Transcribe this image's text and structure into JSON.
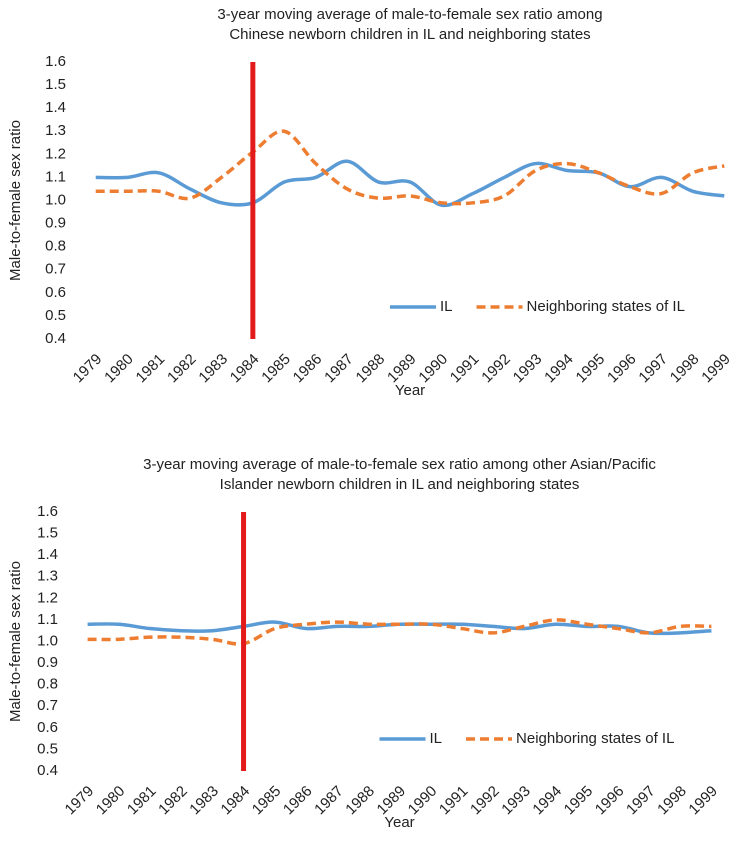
{
  "chart_data": [
    {
      "type": "line",
      "title": "3-year moving average of male-to-female sex ratio among Chinese newborn children in IL and neighboring states",
      "x_label": "Year",
      "y_label": "Male-to-female sex ratio",
      "categories": [
        "1979",
        "1980",
        "1981",
        "1982",
        "1983",
        "1984",
        "1985",
        "1986",
        "1987",
        "1988",
        "1989",
        "1990",
        "1991",
        "1992",
        "1993",
        "1994",
        "1995",
        "1996",
        "1997",
        "1998",
        "1999"
      ],
      "series": [
        {
          "name": "IL",
          "color": "#5b9bd5",
          "dash": false,
          "values": [
            1.1,
            1.1,
            1.12,
            1.05,
            0.99,
            0.99,
            1.08,
            1.1,
            1.17,
            1.08,
            1.08,
            0.98,
            1.03,
            1.1,
            1.16,
            1.13,
            1.12,
            1.06,
            1.1,
            1.04,
            1.02
          ]
        },
        {
          "name": "Neighboring states of IL",
          "color": "#ed7d31",
          "dash": true,
          "values": [
            1.04,
            1.04,
            1.04,
            1.01,
            1.1,
            1.21,
            1.3,
            1.16,
            1.05,
            1.01,
            1.02,
            0.99,
            0.99,
            1.02,
            1.13,
            1.16,
            1.12,
            1.06,
            1.03,
            1.12,
            1.15
          ]
        }
      ],
      "vline": "1984",
      "vline_color": "#e31a1c",
      "ylim": [
        0.4,
        1.6
      ],
      "yticks": [
        0.4,
        0.5,
        0.6,
        0.7,
        0.8,
        0.9,
        {
          "value": 1,
          "label": "1.0"
        },
        1.1,
        1.2,
        1.3,
        1.4,
        1.5,
        1.6
      ],
      "grid": false,
      "legend": "lower right"
    },
    {
      "type": "line",
      "title": "3-year moving average of male-to-female sex ratio among other Asian/Pacific Islander newborn children in IL and neighboring states",
      "x_label": "Year",
      "y_label": "Male-to-female sex ratio",
      "categories": [
        "1979",
        "1980",
        "1981",
        "1982",
        "1983",
        "1984",
        "1985",
        "1986",
        "1987",
        "1988",
        "1989",
        "1990",
        "1991",
        "1992",
        "1993",
        "1994",
        "1995",
        "1996",
        "1997",
        "1998",
        "1999"
      ],
      "series": [
        {
          "name": "IL",
          "color": "#5b9bd5",
          "dash": false,
          "values": [
            1.08,
            1.08,
            1.06,
            1.05,
            1.05,
            1.07,
            1.09,
            1.06,
            1.07,
            1.07,
            1.08,
            1.08,
            1.08,
            1.07,
            1.06,
            1.08,
            1.07,
            1.07,
            1.04,
            1.04,
            1.05
          ]
        },
        {
          "name": "Neighboring states of IL",
          "color": "#ed7d31",
          "dash": true,
          "values": [
            1.01,
            1.01,
            1.02,
            1.02,
            1.01,
            0.99,
            1.06,
            1.08,
            1.09,
            1.08,
            1.08,
            1.08,
            1.06,
            1.04,
            1.07,
            1.1,
            1.08,
            1.06,
            1.04,
            1.07,
            1.07
          ]
        }
      ],
      "vline": "1984",
      "vline_color": "#e31a1c",
      "ylim": [
        0.4,
        1.6
      ],
      "yticks": [
        0.4,
        0.5,
        0.6,
        0.7,
        0.8,
        0.9,
        {
          "value": 1,
          "label": "1.0"
        },
        1.1,
        1.2,
        1.3,
        1.4,
        1.5,
        1.6
      ],
      "grid": false,
      "legend": "lower right"
    }
  ]
}
